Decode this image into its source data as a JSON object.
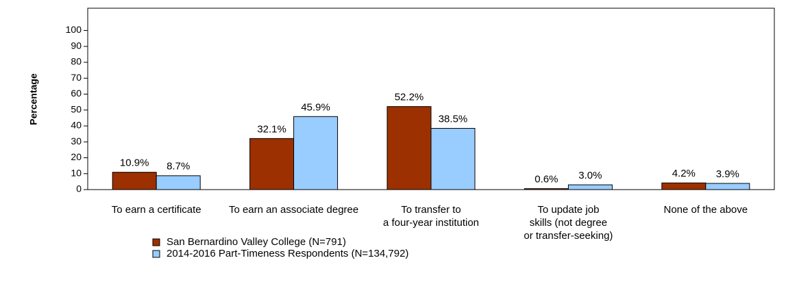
{
  "chart_data": {
    "type": "bar",
    "y_label": "Percentage",
    "categories": [
      [
        "To earn a certificate"
      ],
      [
        "To earn an associate degree"
      ],
      [
        "To transfer to",
        "a four-year institution"
      ],
      [
        "To update job",
        "skills (not degree",
        "or transfer-seeking)"
      ],
      [
        "None of the above"
      ]
    ],
    "series": [
      {
        "name": "San Bernardino Valley College (N=791)",
        "color": "#9c3000",
        "values": [
          10.9,
          32.1,
          52.2,
          0.6,
          4.2
        ],
        "value_labels": [
          "10.9%",
          "32.1%",
          "52.2%",
          "0.6%",
          "4.2%"
        ]
      },
      {
        "name": "2014-2016 Part-Timeness Respondents (N=134,792)",
        "color": "#99ccff",
        "values": [
          8.7,
          45.9,
          38.5,
          3.0,
          3.9
        ],
        "value_labels": [
          "8.7%",
          "45.9%",
          "38.5%",
          "3.0%",
          "3.9%"
        ]
      }
    ],
    "ylim": [
      0,
      114
    ],
    "yticks": [
      0,
      10,
      20,
      30,
      40,
      50,
      60,
      70,
      80,
      90,
      100
    ],
    "grid": false,
    "legend": "bottom"
  }
}
